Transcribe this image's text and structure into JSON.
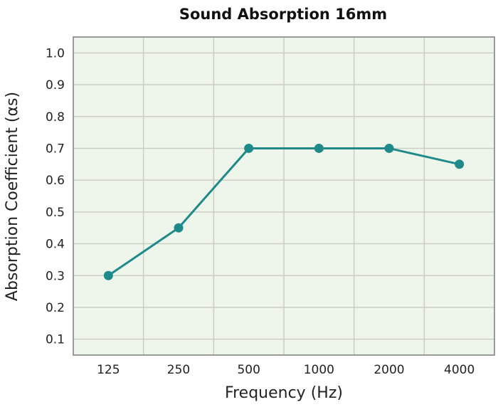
{
  "chart_data": {
    "type": "line",
    "title": "Sound Absorption 16mm",
    "xlabel": "Frequency (Hz)",
    "ylabel": "Absorption Coefficient (αs)",
    "categories": [
      "125",
      "250",
      "500",
      "1000",
      "2000",
      "4000"
    ],
    "series": [
      {
        "values": [
          0.3,
          0.45,
          0.7,
          0.7,
          0.7,
          0.65
        ]
      }
    ],
    "yticks": [
      "0.1",
      "0.2",
      "0.3",
      "0.4",
      "0.5",
      "0.6",
      "0.7",
      "0.8",
      "0.9",
      "1.0"
    ],
    "ylim": [
      0.05,
      1.05
    ],
    "grid": true,
    "legend": "none",
    "colors": {
      "line": "#1f8a8a",
      "plot_background": "#eef5ea",
      "grid": "#c9cfc6",
      "frame": "#9a9a9a"
    }
  }
}
